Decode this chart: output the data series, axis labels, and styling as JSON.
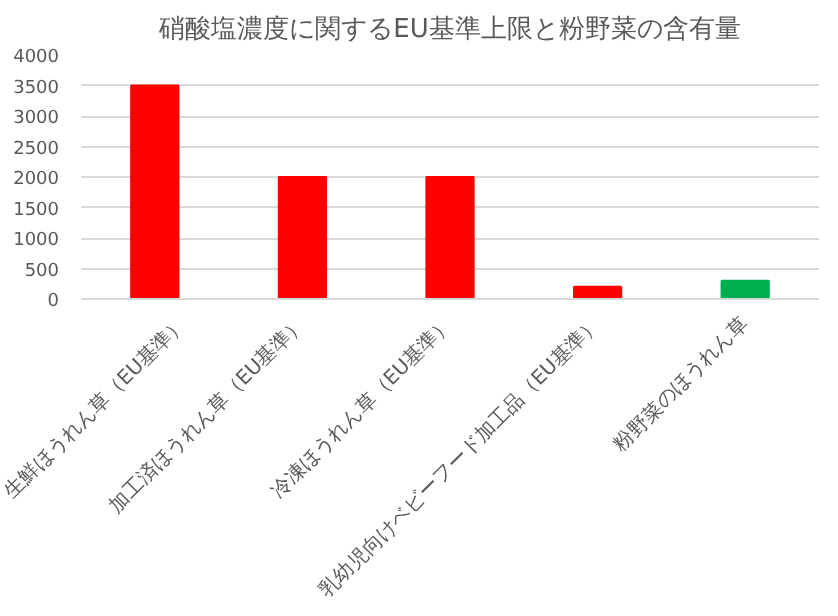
{
  "chart_data": {
    "type": "bar",
    "title": "硝酸塩濃度に関するEU基準上限と粉野菜の含有量",
    "categories": [
      "生鮮ほうれん草（EU基準）",
      "加工済ほうれん草（EU基準）",
      "冷凍ほうれん草（EU基準）",
      "乳幼児向けベビーフード加工品（EU基準）",
      "粉野菜のほうれん草"
    ],
    "values": [
      3500,
      2000,
      2000,
      200,
      300
    ],
    "colors": [
      "#ff0000",
      "#ff0000",
      "#ff0000",
      "#ff0000",
      "#00b050"
    ],
    "ylim": [
      0,
      4000
    ],
    "yticks": [
      0,
      500,
      1000,
      1500,
      2000,
      2500,
      3000,
      3500,
      4000
    ],
    "grid": "y"
  }
}
